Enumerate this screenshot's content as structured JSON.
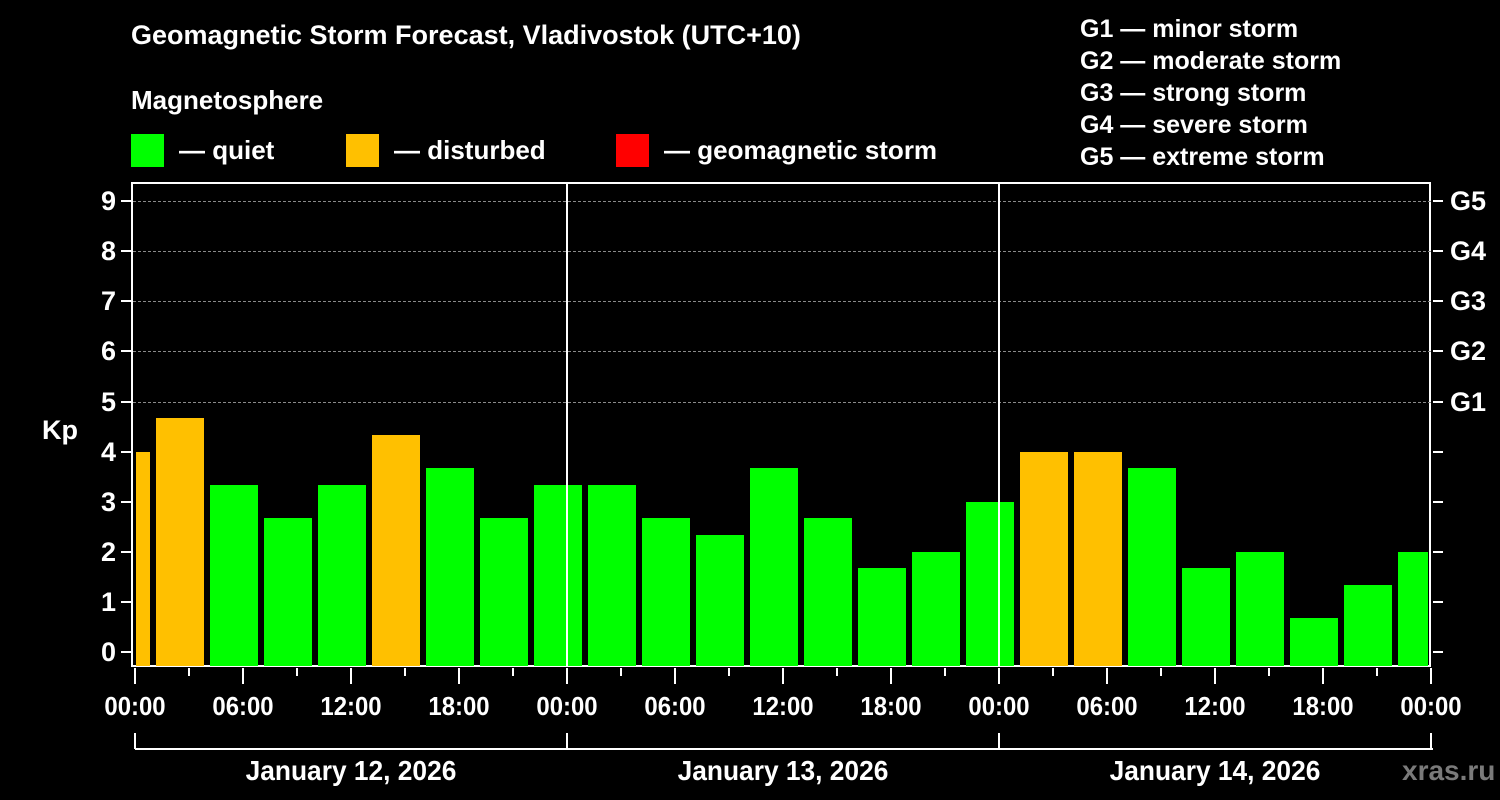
{
  "header": {
    "title": "Geomagnetic Storm Forecast, Vladivostok (UTC+10)",
    "subtitle": "Magnetosphere"
  },
  "legend": [
    {
      "label": "— quiet",
      "color": "#00ff00"
    },
    {
      "label": "— disturbed",
      "color": "#ffc000"
    },
    {
      "label": "— geomagnetic storm",
      "color": "#ff0000"
    }
  ],
  "g_scale": [
    "G1 — minor storm",
    "G2 — moderate storm",
    "G3 — strong storm",
    "G4 — severe storm",
    "G5 — extreme storm"
  ],
  "axis": {
    "y_label": "Kp",
    "y_ticks": [
      "0",
      "1",
      "2",
      "3",
      "4",
      "5",
      "6",
      "7",
      "8",
      "9"
    ],
    "g_ticks": [
      {
        "kp": 5,
        "label": "G1"
      },
      {
        "kp": 6,
        "label": "G2"
      },
      {
        "kp": 7,
        "label": "G3"
      },
      {
        "kp": 8,
        "label": "G4"
      },
      {
        "kp": 9,
        "label": "G5"
      }
    ],
    "x_labels": [
      "00:00",
      "06:00",
      "12:00",
      "18:00",
      "00:00",
      "06:00",
      "12:00",
      "18:00",
      "00:00",
      "06:00",
      "12:00",
      "18:00",
      "00:00"
    ],
    "dates": [
      "January 12, 2026",
      "January 13, 2026",
      "January 14, 2026"
    ]
  },
  "colors": {
    "quiet": "#00ff00",
    "disturbed": "#ffc000",
    "storm": "#ff0000",
    "grid": "#8a8a8a",
    "watermark": "#7a7a7a"
  },
  "watermark": "xras.ru",
  "chart_data": {
    "type": "bar",
    "title": "Geomagnetic Storm Forecast, Vladivostok (UTC+10)",
    "xlabel": "",
    "ylabel": "Kp",
    "ylim": [
      0,
      9
    ],
    "grid": true,
    "legend_position": "top",
    "note": "3-hour Kp forecast bars; first and last bars are partially clipped at plot edges. Start hour = hours from 00:00 Jan 12 (UTC+10).",
    "categories": [
      "Jan 12 -02:00",
      "Jan 12 01:00",
      "Jan 12 04:00",
      "Jan 12 07:00",
      "Jan 12 10:00",
      "Jan 12 13:00",
      "Jan 12 16:00",
      "Jan 12 19:00",
      "Jan 12 22:00",
      "Jan 13 01:00",
      "Jan 13 04:00",
      "Jan 13 07:00",
      "Jan 13 10:00",
      "Jan 13 13:00",
      "Jan 13 16:00",
      "Jan 13 19:00",
      "Jan 13 22:00",
      "Jan 14 01:00",
      "Jan 14 04:00",
      "Jan 14 07:00",
      "Jan 14 10:00",
      "Jan 14 13:00",
      "Jan 14 16:00",
      "Jan 14 19:00",
      "Jan 14 22:00"
    ],
    "start_hours": [
      -2,
      1,
      4,
      7,
      10,
      13,
      16,
      19,
      22,
      25,
      28,
      31,
      34,
      37,
      40,
      43,
      46,
      49,
      52,
      55,
      58,
      61,
      64,
      67,
      70
    ],
    "values": [
      4.0,
      4.67,
      3.33,
      2.67,
      3.33,
      4.33,
      3.67,
      2.67,
      3.33,
      3.33,
      2.67,
      2.33,
      3.67,
      2.67,
      1.67,
      2.0,
      3.0,
      4.0,
      4.0,
      3.67,
      1.67,
      2.0,
      0.67,
      1.33,
      2.0
    ],
    "status": [
      "disturbed",
      "disturbed",
      "quiet",
      "quiet",
      "quiet",
      "disturbed",
      "quiet",
      "quiet",
      "quiet",
      "quiet",
      "quiet",
      "quiet",
      "quiet",
      "quiet",
      "quiet",
      "quiet",
      "quiet",
      "disturbed",
      "disturbed",
      "quiet",
      "quiet",
      "quiet",
      "quiet",
      "quiet",
      "quiet"
    ],
    "right_axis": {
      "G1": 5,
      "G2": 6,
      "G3": 7,
      "G4": 8,
      "G5": 9
    }
  }
}
